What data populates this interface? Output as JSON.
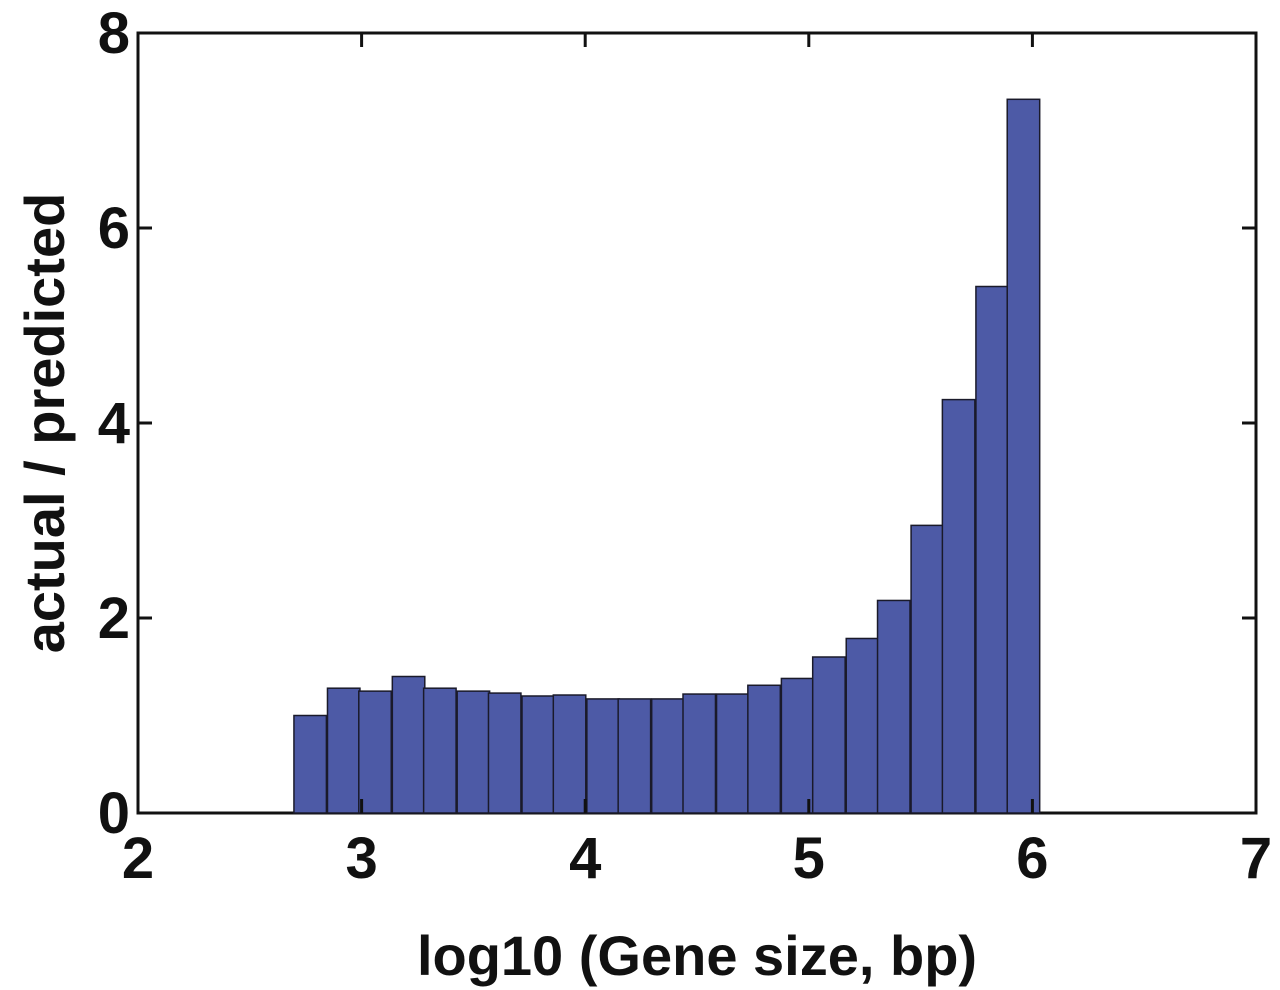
{
  "chart_data": {
    "type": "bar",
    "title": "",
    "xlabel": "log10 (Gene size, bp)",
    "ylabel": "actual / predicted",
    "xlim": [
      2,
      7
    ],
    "ylim": [
      0,
      8
    ],
    "xticks": [
      "2",
      "3",
      "4",
      "5",
      "6",
      "7"
    ],
    "yticks": [
      "0",
      "2",
      "4",
      "6",
      "8"
    ],
    "bar_color": "#4d5aa6",
    "bin_width": 0.1452,
    "x": [
      2.77,
      2.92,
      3.06,
      3.21,
      3.35,
      3.5,
      3.64,
      3.79,
      3.93,
      4.08,
      4.22,
      4.37,
      4.51,
      4.66,
      4.8,
      4.95,
      5.09,
      5.24,
      5.38,
      5.53,
      5.67,
      5.82,
      5.96
    ],
    "values": [
      1.0,
      1.28,
      1.25,
      1.4,
      1.28,
      1.25,
      1.23,
      1.2,
      1.21,
      1.17,
      1.17,
      1.17,
      1.22,
      1.22,
      1.31,
      1.38,
      1.6,
      1.79,
      2.18,
      2.95,
      4.24,
      5.4,
      7.32
    ]
  }
}
